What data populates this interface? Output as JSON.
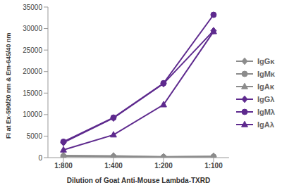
{
  "chart_data": {
    "type": "line",
    "x_label": "Dilution of Goat Anti-Mouse Lambda-TXRD",
    "y_label": "FI at Ex-590/20 nm & Em-645/40 nm",
    "categories": [
      "1:800",
      "1:400",
      "1:200",
      "1:100"
    ],
    "series": [
      {
        "name": "IgGκ",
        "color": "#8c8c8c",
        "marker": "diamond",
        "values": [
          500,
          400,
          200,
          300
        ]
      },
      {
        "name": "IgMκ",
        "color": "#8c8c8c",
        "marker": "circle",
        "values": [
          300,
          200,
          100,
          200
        ]
      },
      {
        "name": "IgAκ",
        "color": "#8c8c8c",
        "marker": "triangle",
        "values": [
          400,
          300,
          150,
          300
        ]
      },
      {
        "name": "IgGλ",
        "color": "#5e2a8e",
        "marker": "diamond",
        "values": [
          3500,
          9200,
          17200,
          29500
        ]
      },
      {
        "name": "IgMλ",
        "color": "#5e2a8e",
        "marker": "circle",
        "values": [
          3700,
          9300,
          17300,
          33200
        ]
      },
      {
        "name": "IgAλ",
        "color": "#5e2a8e",
        "marker": "triangle",
        "values": [
          1800,
          5300,
          12300,
          29300
        ]
      }
    ],
    "ylim": [
      0,
      35000
    ],
    "yticks": [
      0,
      5000,
      10000,
      15000,
      20000,
      25000,
      30000,
      35000
    ],
    "grid": false,
    "legend": "right"
  }
}
